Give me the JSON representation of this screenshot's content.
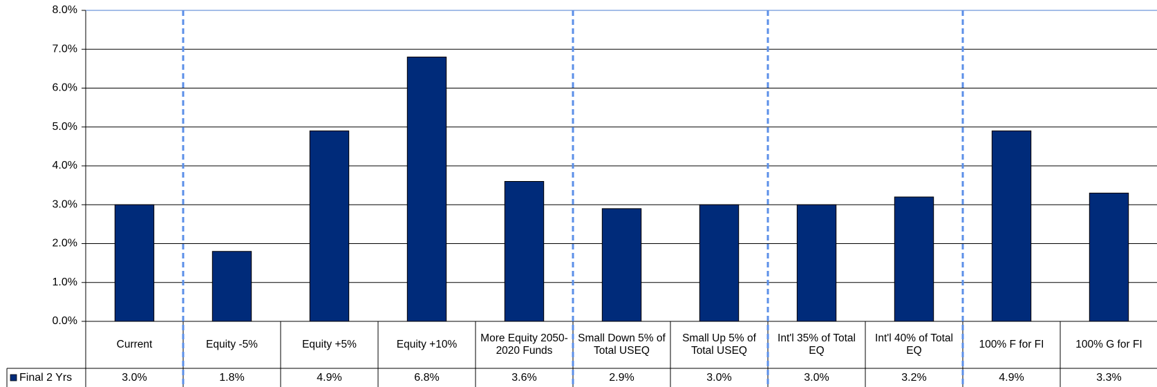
{
  "chart_data": {
    "type": "bar",
    "categories": [
      "Current",
      "Equity -5%",
      "Equity +5%",
      "Equity +10%",
      "More Equity 2050-2020 Funds",
      "Small Down 5% of Total USEQ",
      "Small Up 5% of Total USEQ",
      "Int'l 35% of Total EQ",
      "Int'l 40% of Total EQ",
      "100% F for FI",
      "100% G for FI"
    ],
    "series": [
      {
        "name": "Final 2 Yrs",
        "color": "#002b7a",
        "values": [
          3.0,
          1.8,
          4.9,
          6.8,
          3.6,
          2.9,
          3.0,
          3.0,
          3.2,
          4.9,
          3.3
        ],
        "value_labels": [
          "3.0%",
          "1.8%",
          "4.9%",
          "6.8%",
          "3.6%",
          "2.9%",
          "3.0%",
          "3.0%",
          "3.2%",
          "4.9%",
          "3.3%"
        ]
      }
    ],
    "ylim": [
      0,
      8
    ],
    "yticks": [
      {
        "value": 0,
        "label": "0.0%"
      },
      {
        "value": 1,
        "label": "1.0%"
      },
      {
        "value": 2,
        "label": "2.0%"
      },
      {
        "value": 3,
        "label": "3.0%"
      },
      {
        "value": 4,
        "label": "4.0%"
      },
      {
        "value": 5,
        "label": "5.0%"
      },
      {
        "value": 6,
        "label": "6.0%"
      },
      {
        "value": 7,
        "label": "7.0%"
      },
      {
        "value": 8,
        "label": "8.0%"
      }
    ],
    "grid": true
  }
}
